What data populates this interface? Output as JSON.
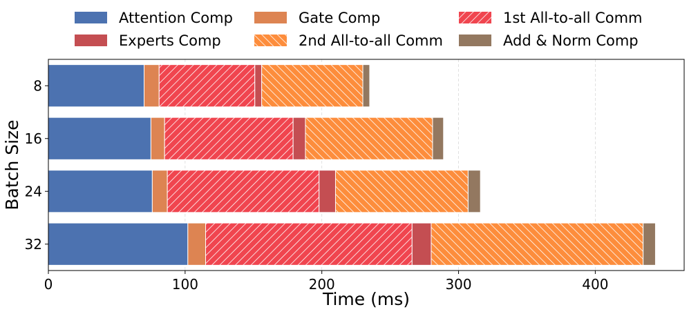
{
  "chart_data": {
    "type": "bar",
    "orientation": "horizontal",
    "stacked": true,
    "xlabel": "Time (ms)",
    "ylabel": "Batch Size",
    "xlim": [
      0,
      465
    ],
    "xticks": [
      0,
      100,
      200,
      300,
      400
    ],
    "grid": "vertical-dashed",
    "legend_position": "top",
    "categories": [
      "8",
      "16",
      "24",
      "32"
    ],
    "series": [
      {
        "name": "Attention Comp",
        "color": "#4c72b0",
        "pattern": "solid",
        "values": [
          70,
          75,
          76,
          102
        ]
      },
      {
        "name": "Gate Comp",
        "color": "#dd8452",
        "pattern": "solid",
        "values": [
          11,
          10,
          11,
          13
        ]
      },
      {
        "name": "1st All-to-all Comm",
        "color": "#f0454f",
        "pattern": "hatch-forward",
        "values": [
          70,
          94,
          111,
          151
        ]
      },
      {
        "name": "Experts Comp",
        "color": "#c44e52",
        "pattern": "solid",
        "values": [
          5,
          9,
          12,
          14
        ]
      },
      {
        "name": "2nd All-to-all Comm",
        "color": "#fd8d3c",
        "pattern": "hatch-back",
        "values": [
          74,
          93,
          97,
          155
        ]
      },
      {
        "name": "Add & Norm Comp",
        "color": "#937860",
        "pattern": "solid",
        "values": [
          5,
          8,
          9,
          9
        ]
      }
    ]
  }
}
